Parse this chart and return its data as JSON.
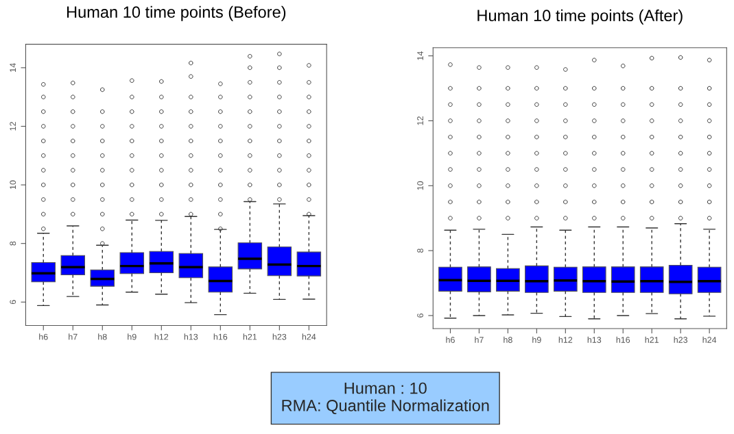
{
  "chart_data": [
    {
      "type": "box",
      "title": "Human 10 time points (Before)",
      "categories": [
        "h6",
        "h7",
        "h8",
        "h9",
        "h12",
        "h13",
        "h16",
        "h21",
        "h23",
        "h24"
      ],
      "ylim": [
        5.2,
        14.8
      ],
      "yticks": [
        6,
        8,
        10,
        12,
        14
      ],
      "grid": false,
      "marker": "circle",
      "series": [
        {
          "color": "#0000ff",
          "boxes": [
            {
              "low": 5.88,
              "q1": 6.69,
              "median": 6.98,
              "q3": 7.35,
              "high": 8.35,
              "outliers": [
                8.5,
                9,
                9.5,
                10,
                10.5,
                11,
                11.5,
                12,
                12.5,
                13,
                13.43
              ]
            },
            {
              "low": 6.19,
              "q1": 6.93,
              "median": 7.19,
              "q3": 7.59,
              "high": 8.6,
              "outliers": [
                9,
                9.5,
                10,
                10.5,
                11,
                11.5,
                12,
                12.5,
                13,
                13.48
              ]
            },
            {
              "low": 5.9,
              "q1": 6.54,
              "median": 6.79,
              "q3": 7.1,
              "high": 7.94,
              "outliers": [
                8,
                8.5,
                9,
                9.5,
                10,
                10.5,
                11,
                11.5,
                12,
                12.5,
                13.25
              ]
            },
            {
              "low": 6.34,
              "q1": 6.97,
              "median": 7.23,
              "q3": 7.69,
              "high": 8.8,
              "outliers": [
                9,
                9.5,
                10,
                10.5,
                11,
                11.5,
                12,
                12.5,
                13,
                13.56
              ]
            },
            {
              "low": 6.27,
              "q1": 7.0,
              "median": 7.32,
              "q3": 7.73,
              "high": 8.79,
              "outliers": [
                9,
                9.5,
                10,
                10.5,
                11,
                11.5,
                12,
                12.5,
                13,
                13.53
              ]
            },
            {
              "low": 5.98,
              "q1": 6.83,
              "median": 7.19,
              "q3": 7.66,
              "high": 8.92,
              "outliers": [
                9,
                9.5,
                10,
                10.5,
                11,
                11.5,
                12,
                12.5,
                13,
                13.7,
                14.16
              ]
            },
            {
              "low": 5.57,
              "q1": 6.34,
              "median": 6.72,
              "q3": 7.2,
              "high": 8.48,
              "outliers": [
                8.5,
                9,
                9.5,
                10,
                10.5,
                11,
                11.5,
                12,
                12.5,
                13,
                13.45
              ]
            },
            {
              "low": 6.3,
              "q1": 7.13,
              "median": 7.48,
              "q3": 8.02,
              "high": 9.43,
              "outliers": [
                9.5,
                10,
                10.5,
                11,
                11.5,
                12,
                12.5,
                13,
                13.5,
                14,
                14.39
              ]
            },
            {
              "low": 6.09,
              "q1": 6.9,
              "median": 7.28,
              "q3": 7.88,
              "high": 9.35,
              "outliers": [
                9.5,
                10,
                10.5,
                11,
                11.5,
                12,
                12.5,
                13,
                13.5,
                14,
                14.47
              ]
            },
            {
              "low": 6.1,
              "q1": 6.89,
              "median": 7.23,
              "q3": 7.71,
              "high": 8.95,
              "outliers": [
                9,
                9.5,
                10,
                10.5,
                11,
                11.5,
                12,
                12.5,
                13,
                13.5,
                14.08
              ]
            }
          ]
        }
      ]
    },
    {
      "type": "box",
      "title": "Human 10 time points (After)",
      "categories": [
        "h6",
        "h7",
        "h8",
        "h9",
        "h12",
        "h13",
        "h16",
        "h21",
        "h23",
        "h24"
      ],
      "ylim": [
        5.6,
        14.25
      ],
      "yticks": [
        6,
        8,
        10,
        12,
        14
      ],
      "grid": false,
      "marker": "circle",
      "series": [
        {
          "color": "#0000ff",
          "boxes": [
            {
              "low": 5.92,
              "q1": 6.75,
              "median": 7.09,
              "q3": 7.49,
              "high": 8.63,
              "outliers": [
                9,
                9.5,
                10,
                10.5,
                11,
                11.5,
                12,
                12.5,
                13,
                13.73
              ]
            },
            {
              "low": 6.0,
              "q1": 6.73,
              "median": 7.07,
              "q3": 7.5,
              "high": 8.66,
              "outliers": [
                9,
                9.5,
                10,
                10.5,
                11,
                11.5,
                12,
                12.5,
                13,
                13.64
              ]
            },
            {
              "low": 6.02,
              "q1": 6.75,
              "median": 7.07,
              "q3": 7.45,
              "high": 8.5,
              "outliers": [
                9,
                9.5,
                10,
                10.5,
                11,
                11.5,
                12,
                12.5,
                13,
                13.64
              ]
            },
            {
              "low": 6.07,
              "q1": 6.71,
              "median": 7.06,
              "q3": 7.53,
              "high": 8.73,
              "outliers": [
                9,
                9.5,
                10,
                10.5,
                11,
                11.5,
                12,
                12.5,
                13,
                13.64
              ]
            },
            {
              "low": 5.97,
              "q1": 6.75,
              "median": 7.08,
              "q3": 7.49,
              "high": 8.63,
              "outliers": [
                9,
                9.5,
                10,
                10.5,
                11,
                11.5,
                12,
                12.5,
                13,
                13.58
              ]
            },
            {
              "low": 5.9,
              "q1": 6.71,
              "median": 7.06,
              "q3": 7.5,
              "high": 8.73,
              "outliers": [
                9,
                9.5,
                10,
                10.5,
                11,
                11.5,
                12,
                12.5,
                13,
                13.87
              ]
            },
            {
              "low": 6.0,
              "q1": 6.71,
              "median": 7.05,
              "q3": 7.5,
              "high": 8.73,
              "outliers": [
                9,
                9.5,
                10,
                10.5,
                11,
                11.5,
                12,
                12.5,
                13,
                13.69
              ]
            },
            {
              "low": 6.06,
              "q1": 6.71,
              "median": 7.06,
              "q3": 7.5,
              "high": 8.7,
              "outliers": [
                9,
                9.5,
                10,
                10.5,
                11,
                11.5,
                12,
                12.5,
                13,
                13.93
              ]
            },
            {
              "low": 5.9,
              "q1": 6.67,
              "median": 7.04,
              "q3": 7.55,
              "high": 8.83,
              "outliers": [
                9,
                9.5,
                10,
                10.5,
                11,
                11.5,
                12,
                12.5,
                13,
                13.95
              ]
            },
            {
              "low": 5.98,
              "q1": 6.71,
              "median": 7.06,
              "q3": 7.49,
              "high": 8.66,
              "outliers": [
                9,
                9.5,
                10,
                10.5,
                11,
                11.5,
                12,
                12.5,
                13,
                13.87
              ]
            }
          ]
        }
      ]
    },
    {
      "type": "other",
      "annotations": [
        "Human : 10",
        "RMA: Quantile Normalization"
      ]
    }
  ]
}
